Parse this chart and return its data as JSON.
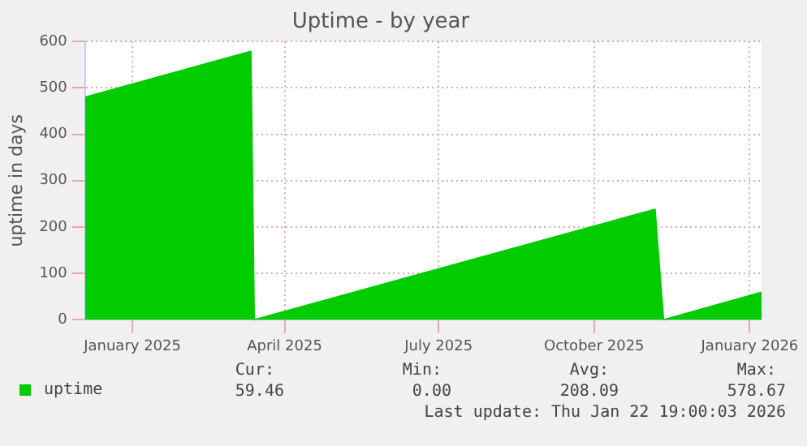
{
  "chart_data": {
    "type": "area",
    "title": "Uptime - by year",
    "ylabel": "uptime in days",
    "x": [
      "2024-12-18",
      "2025-03-26",
      "2025-03-28",
      "2025-11-20",
      "2025-11-25",
      "2026-01-22"
    ],
    "series": [
      {
        "name": "uptime",
        "color": "#00cc00",
        "values": [
          480,
          578.67,
          0,
          238,
          0,
          59.46
        ]
      }
    ],
    "xlim": [
      "2024-12-18",
      "2026-01-22"
    ],
    "xticks": [
      {
        "value": "2025-01-15",
        "label": "January 2025"
      },
      {
        "value": "2025-04-15",
        "label": "April 2025"
      },
      {
        "value": "2025-07-15",
        "label": "July 2025"
      },
      {
        "value": "2025-10-15",
        "label": "October 2025"
      },
      {
        "value": "2026-01-15",
        "label": "January 2026"
      }
    ],
    "ylim": [
      0,
      600
    ],
    "yticks": [
      0,
      100,
      200,
      300,
      400,
      500,
      600
    ],
    "grid": true,
    "legend": "bottom left",
    "annotations": [
      "Cur: 59.46",
      "Min: 0.00",
      "Avg: 208.09",
      "Max: 578.67",
      "Last update: Thu Jan 22 19:00:03 2026"
    ]
  }
}
